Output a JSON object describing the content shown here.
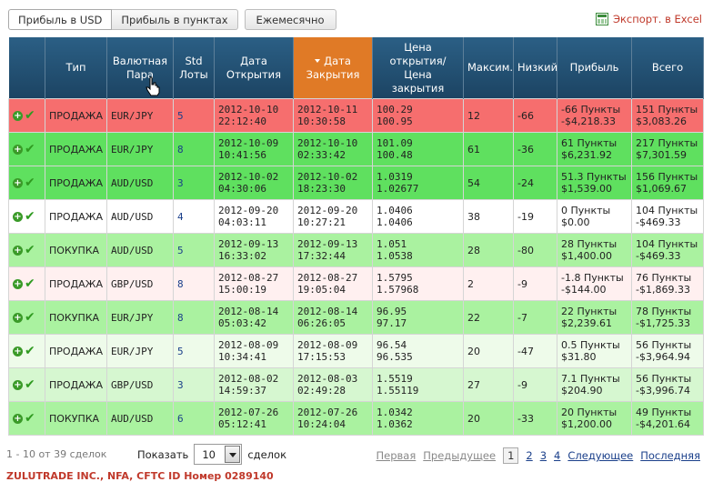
{
  "tabs": [
    "Прибыль в USD",
    "Прибыль в пунктах",
    "Ежемесячно"
  ],
  "export_label": "Экспорт. в Excel",
  "columns": [
    "Тип",
    "Валютная Пара",
    "Std Лоты",
    "Дата Открытия",
    "Дата Закрытия",
    "Цена открытия/ Цена закрытия",
    "Максим.",
    "Низкий",
    "Прибыль",
    "Всего"
  ],
  "rows": [
    {
      "type": "ПРОДАЖА",
      "pair": "EUR/JPY",
      "lots": "5",
      "open_d": "2012-10-10",
      "open_t": "22:12:40",
      "close_d": "2012-10-11",
      "close_t": "10:30:58",
      "price1": "100.29",
      "price2": "100.95",
      "max": "12",
      "low": "-66",
      "p1": "-66 Пункты",
      "p2": "-$4,218.33",
      "t1": "151 Пункты",
      "t2": "$3,083.26",
      "color": "#f66e6e"
    },
    {
      "type": "ПРОДАЖА",
      "pair": "EUR/JPY",
      "lots": "8",
      "open_d": "2012-10-09",
      "open_t": "10:41:56",
      "close_d": "2012-10-10",
      "close_t": "02:33:42",
      "price1": "101.09",
      "price2": "100.48",
      "max": "61",
      "low": "-36",
      "p1": "61 Пункты",
      "p2": "$6,231.92",
      "t1": "217 Пункты",
      "t2": "$7,301.59",
      "color": "#5fe05f"
    },
    {
      "type": "ПРОДАЖА",
      "pair": "AUD/USD",
      "lots": "3",
      "open_d": "2012-10-02",
      "open_t": "04:30:06",
      "close_d": "2012-10-02",
      "close_t": "18:23:30",
      "price1": "1.0319",
      "price2": "1.02677",
      "max": "54",
      "low": "-24",
      "p1": "51.3 Пункты",
      "p2": "$1,539.00",
      "t1": "156 Пункты",
      "t2": "$1,069.67",
      "color": "#5fe05f"
    },
    {
      "type": "ПРОДАЖА",
      "pair": "AUD/USD",
      "lots": "4",
      "open_d": "2012-09-20",
      "open_t": "04:03:11",
      "close_d": "2012-09-20",
      "close_t": "10:27:21",
      "price1": "1.0406",
      "price2": "1.0406",
      "max": "38",
      "low": "-19",
      "p1": "0 Пункты",
      "p2": "$0.00",
      "t1": "104 Пункты",
      "t2": "-$469.33",
      "color": "#ffffff"
    },
    {
      "type": "ПОКУПКА",
      "pair": "AUD/USD",
      "lots": "5",
      "open_d": "2012-09-13",
      "open_t": "16:33:02",
      "close_d": "2012-09-13",
      "close_t": "17:32:44",
      "price1": "1.051",
      "price2": "1.0538",
      "max": "28",
      "low": "-80",
      "p1": "28 Пункты",
      "p2": "$1,400.00",
      "t1": "104 Пункты",
      "t2": "-$469.33",
      "color": "#aaf2a0"
    },
    {
      "type": "ПРОДАЖА",
      "pair": "GBP/USD",
      "lots": "8",
      "open_d": "2012-08-27",
      "open_t": "15:00:19",
      "close_d": "2012-08-27",
      "close_t": "19:05:04",
      "price1": "1.5795",
      "price2": "1.57968",
      "max": "2",
      "low": "-9",
      "p1": "-1.8 Пункты",
      "p2": "-$144.00",
      "t1": "76 Пункты",
      "t2": "-$1,869.33",
      "color": "#fff0f0"
    },
    {
      "type": "ПОКУПКА",
      "pair": "EUR/JPY",
      "lots": "8",
      "open_d": "2012-08-14",
      "open_t": "05:03:42",
      "close_d": "2012-08-14",
      "close_t": "06:26:05",
      "price1": "96.95",
      "price2": "97.17",
      "max": "22",
      "low": "-7",
      "p1": "22 Пункты",
      "p2": "$2,239.61",
      "t1": "78 Пункты",
      "t2": "-$1,725.33",
      "color": "#aaf2a0"
    },
    {
      "type": "ПРОДАЖА",
      "pair": "EUR/JPY",
      "lots": "5",
      "open_d": "2012-08-09",
      "open_t": "10:34:41",
      "close_d": "2012-08-09",
      "close_t": "17:15:53",
      "price1": "96.54",
      "price2": "96.535",
      "max": "20",
      "low": "-47",
      "p1": "0.5 Пункты",
      "p2": "$31.80",
      "t1": "56 Пункты",
      "t2": "-$3,964.94",
      "color": "#eefbea"
    },
    {
      "type": "ПРОДАЖА",
      "pair": "GBP/USD",
      "lots": "3",
      "open_d": "2012-08-02",
      "open_t": "14:59:37",
      "close_d": "2012-08-03",
      "close_t": "02:49:28",
      "price1": "1.5519",
      "price2": "1.55119",
      "max": "27",
      "low": "-9",
      "p1": "7.1 Пункты",
      "p2": "$204.90",
      "t1": "56 Пункты",
      "t2": "-$3,996.74",
      "color": "#d6f7d0"
    },
    {
      "type": "ПОКУПКА",
      "pair": "AUD/USD",
      "lots": "6",
      "open_d": "2012-07-26",
      "open_t": "05:12:41",
      "close_d": "2012-07-26",
      "close_t": "10:24:04",
      "price1": "1.0342",
      "price2": "1.0362",
      "max": "20",
      "low": "-33",
      "p1": "20 Пункты",
      "p2": "$1,200.00",
      "t1": "49 Пункты",
      "t2": "-$4,201.64",
      "color": "#aaf2a0"
    }
  ],
  "footer": {
    "count": "1 - 10 от 39 сделок",
    "show_label": "Показать",
    "per_page": "10",
    "per_page_suffix": "сделок",
    "prev_first": "Первая",
    "prev": "Предыдущее",
    "pages": [
      "1",
      "2",
      "3",
      "4"
    ],
    "current_page": "1",
    "next": "Следующее",
    "last": "Последняя"
  },
  "bottom_text": "ZULUTRADE INC., NFA, CFTC ID Номер 0289140"
}
